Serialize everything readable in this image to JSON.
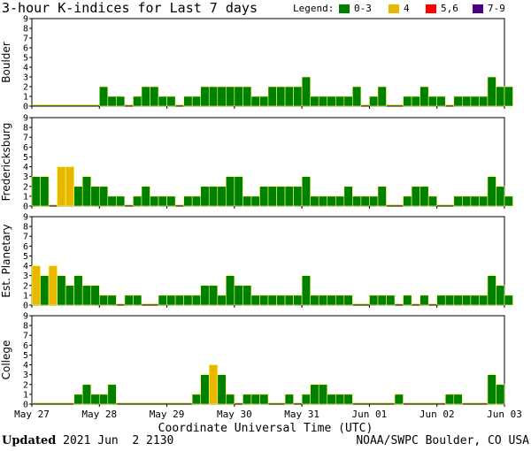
{
  "title": "3-hour K-indices for Last 7 days",
  "legend": {
    "label": "Legend:",
    "items": [
      {
        "label": "0-3",
        "color": "#008000"
      },
      {
        "label": "4",
        "color": "#e6b800"
      },
      {
        "label": "5,6",
        "color": "#ff0000"
      },
      {
        "label": "7-9",
        "color": "#4b0082"
      }
    ]
  },
  "footer": {
    "updated_label": "Updated",
    "updated_value": "2021 Jun  2 2130",
    "credit": "NOAA/SWPC Boulder, CO USA"
  },
  "chart_data": {
    "type": "bar",
    "xlabel": "Coordinate Universal Time (UTC)",
    "x_tick_labels": [
      "May 27",
      "May 28",
      "May 29",
      "May 30",
      "May 31",
      "Jun 01",
      "Jun 02",
      "Jun 03"
    ],
    "bins_per_day": 8,
    "ylim": [
      0,
      9
    ],
    "y_ticks": [
      0,
      1,
      2,
      3,
      4,
      5,
      6,
      7,
      8,
      9
    ],
    "color_thresholds": [
      {
        "max": 3,
        "color": "#008000"
      },
      {
        "max": 4,
        "color": "#e6b800"
      },
      {
        "max": 6,
        "color": "#ff0000"
      },
      {
        "max": 9,
        "color": "#4b0082"
      }
    ],
    "series": [
      {
        "name": "Boulder",
        "values": [
          0,
          0,
          0,
          0,
          0,
          0,
          0,
          0,
          2,
          1,
          1,
          0,
          1,
          2,
          2,
          1,
          1,
          0,
          1,
          1,
          2,
          2,
          2,
          2,
          2,
          2,
          1,
          1,
          2,
          2,
          2,
          2,
          3,
          1,
          1,
          1,
          1,
          1,
          2,
          0,
          1,
          2,
          0,
          0,
          1,
          1,
          2,
          1,
          1,
          0,
          1,
          1,
          1,
          1,
          3,
          2,
          2,
          0
        ]
      },
      {
        "name": "Fredericksburg",
        "values": [
          3,
          3,
          0,
          4,
          4,
          2,
          3,
          2,
          2,
          1,
          1,
          0,
          1,
          2,
          1,
          1,
          1,
          0,
          1,
          1,
          2,
          2,
          2,
          3,
          3,
          1,
          1,
          2,
          2,
          2,
          2,
          2,
          3,
          1,
          1,
          1,
          1,
          2,
          1,
          1,
          1,
          2,
          0,
          0,
          1,
          2,
          2,
          1,
          0,
          0,
          1,
          1,
          1,
          1,
          3,
          2,
          1,
          0
        ]
      },
      {
        "name": "Est. Planetary",
        "values": [
          4,
          3,
          4,
          3,
          2,
          3,
          2,
          2,
          1,
          1,
          0,
          1,
          1,
          0,
          0,
          1,
          1,
          1,
          1,
          1,
          2,
          2,
          1,
          3,
          2,
          2,
          1,
          1,
          1,
          1,
          1,
          1,
          3,
          1,
          1,
          1,
          1,
          1,
          0,
          0,
          1,
          1,
          1,
          0,
          1,
          0,
          1,
          0,
          1,
          1,
          1,
          1,
          1,
          1,
          3,
          2,
          1,
          0
        ]
      },
      {
        "name": "College",
        "values": [
          0,
          0,
          0,
          0,
          0,
          1,
          2,
          1,
          1,
          2,
          0,
          0,
          0,
          0,
          0,
          0,
          0,
          0,
          0,
          1,
          3,
          4,
          3,
          1,
          0,
          1,
          1,
          1,
          0,
          0,
          1,
          0,
          1,
          2,
          2,
          1,
          1,
          1,
          0,
          0,
          0,
          0,
          0,
          1,
          0,
          0,
          0,
          0,
          0,
          1,
          1,
          0,
          0,
          0,
          3,
          2,
          0,
          0
        ]
      }
    ]
  }
}
